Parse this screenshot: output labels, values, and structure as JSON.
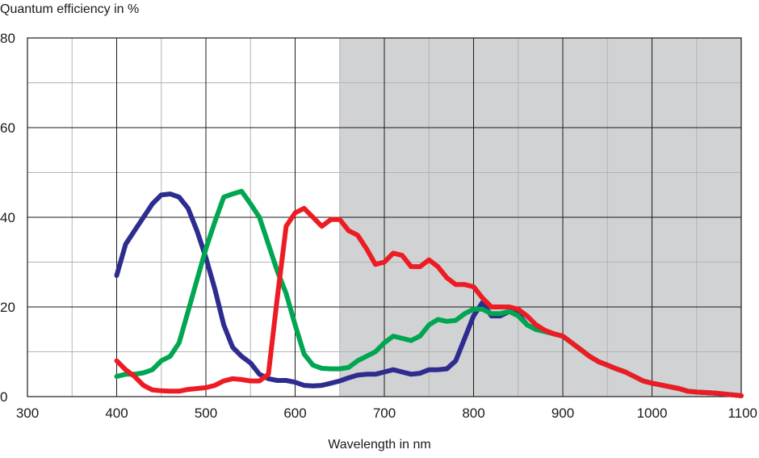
{
  "chart_data": {
    "type": "line",
    "title": "",
    "ylabel": "Quantum efficiency in %",
    "xlabel": "Wavelength in nm",
    "xlim": [
      300,
      1100
    ],
    "ylim": [
      0,
      80
    ],
    "x_ticks": [
      300,
      400,
      500,
      600,
      700,
      800,
      900,
      1000,
      1100
    ],
    "y_ticks": [
      0,
      20,
      40,
      60,
      80
    ],
    "x_minor_step": 50,
    "y_minor_step": 10,
    "grid": true,
    "shaded_region": {
      "x_from": 650,
      "x_to": 1100,
      "color": "#d1d2d4"
    },
    "series": [
      {
        "color": "#2e2d8f",
        "points": [
          [
            400,
            27
          ],
          [
            410,
            34
          ],
          [
            420,
            37
          ],
          [
            430,
            40
          ],
          [
            440,
            43
          ],
          [
            450,
            45
          ],
          [
            460,
            45.2
          ],
          [
            470,
            44.5
          ],
          [
            480,
            42
          ],
          [
            490,
            37
          ],
          [
            500,
            31
          ],
          [
            510,
            24
          ],
          [
            520,
            16
          ],
          [
            530,
            11
          ],
          [
            540,
            9
          ],
          [
            550,
            7.5
          ],
          [
            560,
            5
          ],
          [
            570,
            4
          ],
          [
            580,
            3.6
          ],
          [
            590,
            3.6
          ],
          [
            600,
            3.2
          ],
          [
            610,
            2.5
          ],
          [
            620,
            2.4
          ],
          [
            630,
            2.5
          ],
          [
            640,
            3
          ],
          [
            650,
            3.5
          ],
          [
            660,
            4.2
          ],
          [
            670,
            4.8
          ],
          [
            680,
            5
          ],
          [
            690,
            5
          ],
          [
            700,
            5.5
          ],
          [
            710,
            6
          ],
          [
            720,
            5.5
          ],
          [
            730,
            5
          ],
          [
            740,
            5.2
          ],
          [
            750,
            6
          ],
          [
            760,
            6
          ],
          [
            770,
            6.2
          ],
          [
            780,
            8
          ],
          [
            790,
            13
          ],
          [
            800,
            18
          ],
          [
            810,
            21
          ],
          [
            820,
            18
          ],
          [
            830,
            18
          ],
          [
            840,
            19
          ],
          [
            850,
            18.5
          ],
          [
            860,
            16
          ],
          [
            870,
            15
          ],
          [
            880,
            14.5
          ],
          [
            890,
            14
          ],
          [
            900,
            13.5
          ],
          [
            910,
            12
          ],
          [
            920,
            10.5
          ],
          [
            930,
            9
          ],
          [
            940,
            7.8
          ],
          [
            950,
            7
          ],
          [
            960,
            6.2
          ],
          [
            970,
            5.5
          ],
          [
            980,
            4.5
          ],
          [
            990,
            3.5
          ],
          [
            1000,
            3
          ],
          [
            1010,
            2.6
          ],
          [
            1020,
            2.2
          ],
          [
            1030,
            1.8
          ],
          [
            1040,
            1.2
          ],
          [
            1050,
            1
          ],
          [
            1060,
            0.9
          ],
          [
            1070,
            0.8
          ],
          [
            1080,
            0.6
          ],
          [
            1090,
            0.4
          ],
          [
            1100,
            0.2
          ]
        ]
      },
      {
        "color": "#00a650",
        "points": [
          [
            400,
            4.5
          ],
          [
            410,
            5
          ],
          [
            420,
            5
          ],
          [
            430,
            5.3
          ],
          [
            440,
            6
          ],
          [
            450,
            8
          ],
          [
            460,
            9
          ],
          [
            470,
            12
          ],
          [
            480,
            19
          ],
          [
            490,
            26
          ],
          [
            500,
            33
          ],
          [
            510,
            39
          ],
          [
            520,
            44.5
          ],
          [
            530,
            45.2
          ],
          [
            540,
            45.8
          ],
          [
            550,
            43
          ],
          [
            560,
            40
          ],
          [
            570,
            34
          ],
          [
            580,
            28
          ],
          [
            590,
            23
          ],
          [
            600,
            16
          ],
          [
            610,
            9.5
          ],
          [
            620,
            7
          ],
          [
            630,
            6.3
          ],
          [
            640,
            6.2
          ],
          [
            650,
            6.2
          ],
          [
            660,
            6.5
          ],
          [
            670,
            8
          ],
          [
            680,
            9
          ],
          [
            690,
            10
          ],
          [
            700,
            12
          ],
          [
            710,
            13.5
          ],
          [
            720,
            13
          ],
          [
            730,
            12.5
          ],
          [
            740,
            13.5
          ],
          [
            750,
            16
          ],
          [
            760,
            17.2
          ],
          [
            770,
            16.8
          ],
          [
            780,
            17
          ],
          [
            790,
            18.5
          ],
          [
            800,
            19.5
          ],
          [
            810,
            19.5
          ],
          [
            820,
            18.5
          ],
          [
            830,
            18.5
          ],
          [
            840,
            19
          ],
          [
            850,
            18
          ],
          [
            860,
            16
          ],
          [
            870,
            15
          ],
          [
            880,
            14.5
          ],
          [
            890,
            14
          ],
          [
            900,
            13.5
          ],
          [
            910,
            12
          ],
          [
            920,
            10.5
          ],
          [
            930,
            9
          ],
          [
            940,
            7.8
          ],
          [
            950,
            7
          ],
          [
            960,
            6.2
          ],
          [
            970,
            5.5
          ],
          [
            980,
            4.5
          ],
          [
            990,
            3.5
          ],
          [
            1000,
            3
          ],
          [
            1010,
            2.6
          ],
          [
            1020,
            2.2
          ],
          [
            1030,
            1.8
          ],
          [
            1040,
            1.2
          ],
          [
            1050,
            1
          ],
          [
            1060,
            0.9
          ],
          [
            1070,
            0.8
          ],
          [
            1080,
            0.6
          ],
          [
            1090,
            0.4
          ],
          [
            1100,
            0.2
          ]
        ]
      },
      {
        "color": "#ed1c24",
        "points": [
          [
            400,
            8
          ],
          [
            410,
            6
          ],
          [
            420,
            4.5
          ],
          [
            430,
            2.5
          ],
          [
            440,
            1.5
          ],
          [
            450,
            1.3
          ],
          [
            460,
            1.2
          ],
          [
            470,
            1.2
          ],
          [
            480,
            1.6
          ],
          [
            490,
            1.8
          ],
          [
            500,
            2
          ],
          [
            510,
            2.5
          ],
          [
            520,
            3.5
          ],
          [
            530,
            4
          ],
          [
            540,
            3.8
          ],
          [
            550,
            3.5
          ],
          [
            560,
            3.5
          ],
          [
            570,
            5
          ],
          [
            580,
            22
          ],
          [
            590,
            38
          ],
          [
            600,
            41
          ],
          [
            610,
            42
          ],
          [
            620,
            40
          ],
          [
            630,
            38
          ],
          [
            640,
            39.5
          ],
          [
            650,
            39.5
          ],
          [
            660,
            37
          ],
          [
            670,
            36
          ],
          [
            680,
            33
          ],
          [
            690,
            29.5
          ],
          [
            700,
            30
          ],
          [
            710,
            32
          ],
          [
            720,
            31.5
          ],
          [
            730,
            29
          ],
          [
            740,
            29
          ],
          [
            750,
            30.5
          ],
          [
            760,
            29
          ],
          [
            770,
            26.5
          ],
          [
            780,
            25
          ],
          [
            790,
            25
          ],
          [
            800,
            24.5
          ],
          [
            810,
            22
          ],
          [
            820,
            20
          ],
          [
            830,
            20
          ],
          [
            840,
            20
          ],
          [
            850,
            19.5
          ],
          [
            860,
            18
          ],
          [
            870,
            16
          ],
          [
            880,
            14.8
          ],
          [
            890,
            14
          ],
          [
            900,
            13.5
          ],
          [
            910,
            12
          ],
          [
            920,
            10.5
          ],
          [
            930,
            9
          ],
          [
            940,
            7.8
          ],
          [
            950,
            7
          ],
          [
            960,
            6.2
          ],
          [
            970,
            5.5
          ],
          [
            980,
            4.5
          ],
          [
            990,
            3.5
          ],
          [
            1000,
            3
          ],
          [
            1010,
            2.6
          ],
          [
            1020,
            2.2
          ],
          [
            1030,
            1.8
          ],
          [
            1040,
            1.2
          ],
          [
            1050,
            1
          ],
          [
            1060,
            0.9
          ],
          [
            1070,
            0.8
          ],
          [
            1080,
            0.6
          ],
          [
            1090,
            0.4
          ],
          [
            1100,
            0.2
          ]
        ]
      }
    ]
  }
}
